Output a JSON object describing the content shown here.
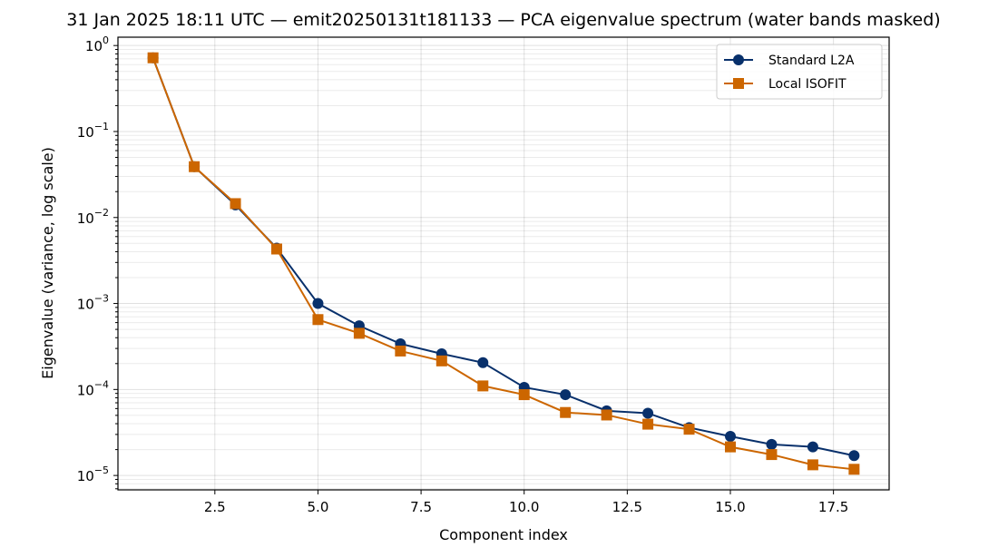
{
  "chart_data": {
    "type": "line",
    "title": "31 Jan 2025 18:11 UTC — emit20250131t181133 — PCA eigenvalue spectrum (water bands masked)",
    "xlabel": "Component index",
    "ylabel": "Eigenvalue (variance, log scale)",
    "xlim": [
      0.15,
      18.85
    ],
    "ylim": [
      6.8e-06,
      1.25
    ],
    "yscale": "log",
    "xticks": [
      "2.5",
      "5.0",
      "7.5",
      "10.0",
      "12.5",
      "15.0",
      "17.5"
    ],
    "yticks": [
      {
        "base": "10",
        "exp": "0"
      },
      {
        "base": "10",
        "exp": "−1"
      },
      {
        "base": "10",
        "exp": "−2"
      },
      {
        "base": "10",
        "exp": "−3"
      },
      {
        "base": "10",
        "exp": "−4"
      },
      {
        "base": "10",
        "exp": "−5"
      }
    ],
    "grid": true,
    "legend_position": "top-right",
    "x": [
      1,
      2,
      3,
      4,
      5,
      6,
      7,
      8,
      9,
      10,
      11,
      12,
      13,
      14,
      15,
      16,
      17,
      18
    ],
    "series": [
      {
        "name": "Standard L2A",
        "color": "#08306b",
        "marker": "circle",
        "values": [
          0.72,
          0.039,
          0.014,
          0.0044,
          0.001,
          0.00055,
          0.00034,
          0.00026,
          0.000205,
          0.000106,
          8.7e-05,
          5.65e-05,
          5.3e-05,
          3.6e-05,
          2.85e-05,
          2.3e-05,
          2.15e-05,
          1.7e-05
        ]
      },
      {
        "name": "Local ISOFIT",
        "color": "#cc6600",
        "marker": "square",
        "values": [
          0.72,
          0.039,
          0.0145,
          0.0043,
          0.00065,
          0.00045,
          0.00028,
          0.000215,
          0.00011,
          8.7e-05,
          5.4e-05,
          5.05e-05,
          3.95e-05,
          3.45e-05,
          2.15e-05,
          1.75e-05,
          1.33e-05,
          1.18e-05
        ]
      }
    ]
  }
}
